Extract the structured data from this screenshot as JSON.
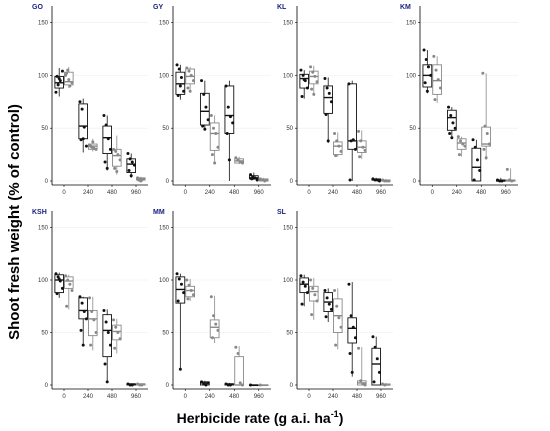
{
  "chart_data": {
    "type": "box",
    "ylabel": "Shoot fresh weight (% of control)",
    "xlabel": "Herbicide rate (g a.i. ha⁻¹)",
    "xlabel_main": "Herbicide rate (g a.i. ha",
    "xlabel_sup": "-1",
    "xlabel_end": ")",
    "categories": [
      "0",
      "240",
      "480",
      "960"
    ],
    "y_ticks": [
      "0",
      "50",
      "100",
      "150"
    ],
    "ylim": [
      0,
      160
    ],
    "grid": true,
    "series_colors": [
      "#111111",
      "#888888"
    ],
    "panels": [
      {
        "title": "GO",
        "series": [
          {
            "boxes": [
              [
                80,
                88,
                93,
                99,
                107
              ],
              [
                88,
                91,
                94,
                103,
                108
              ],
              [
                27,
                40,
                52,
                73,
                78
              ],
              [
                28,
                30,
                33,
                35,
                40
              ],
              [
                10,
                26,
                41,
                52,
                62
              ],
              [
                6,
                14,
                24,
                30,
                43
              ],
              [
                3,
                8,
                16,
                21,
                26
              ],
              [
                0,
                1,
                2,
                3,
                4
              ]
            ],
            "points": [
              [
                84,
                91,
                95,
                104,
                99,
                97
              ],
              [
                100,
                105,
                90,
                93,
                102,
                96
              ],
              [
                75,
                68,
                51,
                33,
                39,
                40
              ],
              [
                34,
                32,
                31,
                30,
                33,
                37
              ],
              [
                62,
                53,
                40,
                30,
                18,
                12
              ],
              [
                30,
                28,
                25,
                20,
                12,
                9
              ],
              [
                26,
                21,
                18,
                15,
                10,
                5
              ],
              [
                3,
                2,
                1,
                2,
                1,
                0
              ]
            ]
          }
        ]
      },
      {
        "title": "GY",
        "series": [
          {
            "boxes": [
              [
                77,
                82,
                92,
                103,
                110
              ],
              [
                84,
                92,
                99,
                106,
                108
              ],
              [
                48,
                53,
                66,
                83,
                95
              ],
              [
                16,
                29,
                45,
                55,
                62
              ],
              [
                0,
                45,
                62,
                90,
                95
              ],
              [
                16,
                17,
                19,
                21,
                23
              ],
              [
                1,
                2,
                3,
                5,
                8
              ],
              [
                0,
                0,
                1,
                2,
                3
              ]
            ],
            "points": [
              [
                110,
                106,
                98,
                85,
                81,
                90
              ],
              [
                107,
                104,
                100,
                95,
                88,
                85
              ],
              [
                95,
                82,
                70,
                58,
                52,
                49
              ],
              [
                62,
                50,
                45,
                32,
                25,
                17
              ],
              [
                90,
                70,
                61,
                55,
                45,
                20
              ],
              [
                22,
                20,
                18,
                17
              ],
              [
                6,
                4,
                3,
                1,
                2
              ],
              [
                2,
                1,
                0,
                1
              ]
            ]
          }
        ]
      },
      {
        "title": "KL",
        "series": [
          {
            "boxes": [
              [
                78,
                88,
                97,
                101,
                105
              ],
              [
                81,
                92,
                99,
                104,
                109
              ],
              [
                36,
                64,
                79,
                90,
                98
              ],
              [
                23,
                25,
                33,
                37,
                46
              ],
              [
                0,
                30,
                38,
                92,
                95
              ],
              [
                21,
                27,
                32,
                38,
                48
              ],
              [
                0,
                1,
                1,
                2,
                3
              ],
              [
                0,
                0,
                0,
                1,
                2
              ]
            ],
            "points": [
              [
                105,
                100,
                95,
                88,
                80,
                96
              ],
              [
                108,
                103,
                99,
                94,
                87,
                82
              ],
              [
                97,
                88,
                83,
                75,
                63,
                38
              ],
              [
                45,
                38,
                33,
                28,
                24
              ],
              [
                92,
                38,
                39,
                30,
                1
              ],
              [
                47,
                38,
                32,
                29,
                23
              ],
              [
                2,
                1,
                1,
                0
              ],
              [
                1,
                0,
                0,
                0
              ]
            ]
          }
        ]
      },
      {
        "title": "KM",
        "series": [
          {
            "boxes": [
              [
                83,
                89,
                100,
                110,
                124
              ],
              [
                74,
                82,
                95,
                110,
                118
              ],
              [
                40,
                48,
                60,
                67,
                70
              ],
              [
                23,
                30,
                36,
                40,
                42
              ],
              [
                0,
                0,
                13,
                31,
                39
              ],
              [
                20,
                33,
                35,
                51,
                102
              ],
              [
                0,
                0,
                0,
                1,
                3
              ],
              [
                0,
                0,
                0,
                1,
                12
              ]
            ],
            "points": [
              [
                124,
                115,
                108,
                100,
                93,
                85
              ],
              [
                118,
                105,
                96,
                88,
                77
              ],
              [
                70,
                62,
                55,
                50,
                45,
                41
              ],
              [
                42,
                38,
                35,
                33,
                25
              ],
              [
                39,
                32,
                20,
                10,
                1
              ],
              [
                102,
                52,
                45,
                35,
                30,
                22
              ],
              [
                1,
                0,
                0
              ],
              [
                11,
                1,
                0
              ]
            ]
          }
        ]
      },
      {
        "title": "KSH",
        "series": [
          {
            "boxes": [
              [
                83,
                88,
                100,
                105,
                107
              ],
              [
                72,
                92,
                99,
                103,
                105
              ],
              [
                37,
                63,
                71,
                83,
                84
              ],
              [
                33,
                47,
                63,
                71,
                84
              ],
              [
                4,
                27,
                52,
                67,
                72
              ],
              [
                30,
                43,
                51,
                57,
                63
              ],
              [
                0,
                0,
                1,
                1,
                1
              ],
              [
                0,
                0,
                1,
                1,
                1
              ]
            ],
            "points": [
              [
                106,
                103,
                99,
                92,
                87,
                101
              ],
              [
                104,
                100,
                96,
                90,
                75
              ],
              [
                84,
                78,
                70,
                63,
                52,
                38
              ],
              [
                83,
                70,
                62,
                50,
                38
              ],
              [
                71,
                60,
                50,
                38,
                20,
                3
              ],
              [
                62,
                55,
                50,
                44,
                35
              ],
              [
                1,
                0,
                0
              ],
              [
                1,
                0,
                0
              ]
            ]
          }
        ]
      },
      {
        "title": "MM",
        "series": [
          {
            "boxes": [
              [
                15,
                78,
                91,
                103,
                106
              ],
              [
                80,
                84,
                90,
                94,
                101
              ],
              [
                0,
                0,
                2,
                3,
                4
              ],
              [
                40,
                45,
                55,
                62,
                85
              ],
              [
                0,
                0,
                1,
                1,
                2
              ],
              [
                0,
                0,
                0,
                27,
                37
              ],
              [
                0,
                0,
                0,
                0,
                0
              ],
              [
                0,
                0,
                0,
                0,
                0
              ]
            ],
            "points": [
              [
                106,
                101,
                96,
                88,
                80,
                15
              ],
              [
                100,
                95,
                90,
                86,
                82
              ],
              [
                3,
                1,
                0,
                2
              ],
              [
                84,
                66,
                58,
                52,
                45
              ],
              [
                1,
                0,
                0
              ],
              [
                36,
                30,
                2,
                0
              ],
              [
                0
              ],
              [
                0
              ]
            ]
          }
        ]
      },
      {
        "title": "SL",
        "series": [
          {
            "boxes": [
              [
                75,
                88,
                96,
                102,
                105
              ],
              [
                62,
                80,
                89,
                94,
                102
              ],
              [
                60,
                70,
                79,
                88,
                92
              ],
              [
                34,
                50,
                66,
                82,
                92
              ],
              [
                8,
                40,
                54,
                64,
                98
              ],
              [
                0,
                0,
                2,
                4,
                36
              ],
              [
                0,
                0,
                20,
                35,
                46
              ],
              [
                0,
                0,
                0,
                1,
                2
              ]
            ],
            "points": [
              [
                104,
                98,
                94,
                88,
                77
              ],
              [
                100,
                92,
                86,
                80,
                67
              ],
              [
                90,
                83,
                77,
                72,
                65
              ],
              [
                90,
                75,
                64,
                55,
                38
              ],
              [
                96,
                66,
                55,
                45,
                30,
                12
              ],
              [
                35,
                4,
                1,
                0
              ],
              [
                46,
                36,
                25,
                12,
                3
              ],
              [
                1,
                0
              ]
            ]
          }
        ]
      }
    ]
  }
}
